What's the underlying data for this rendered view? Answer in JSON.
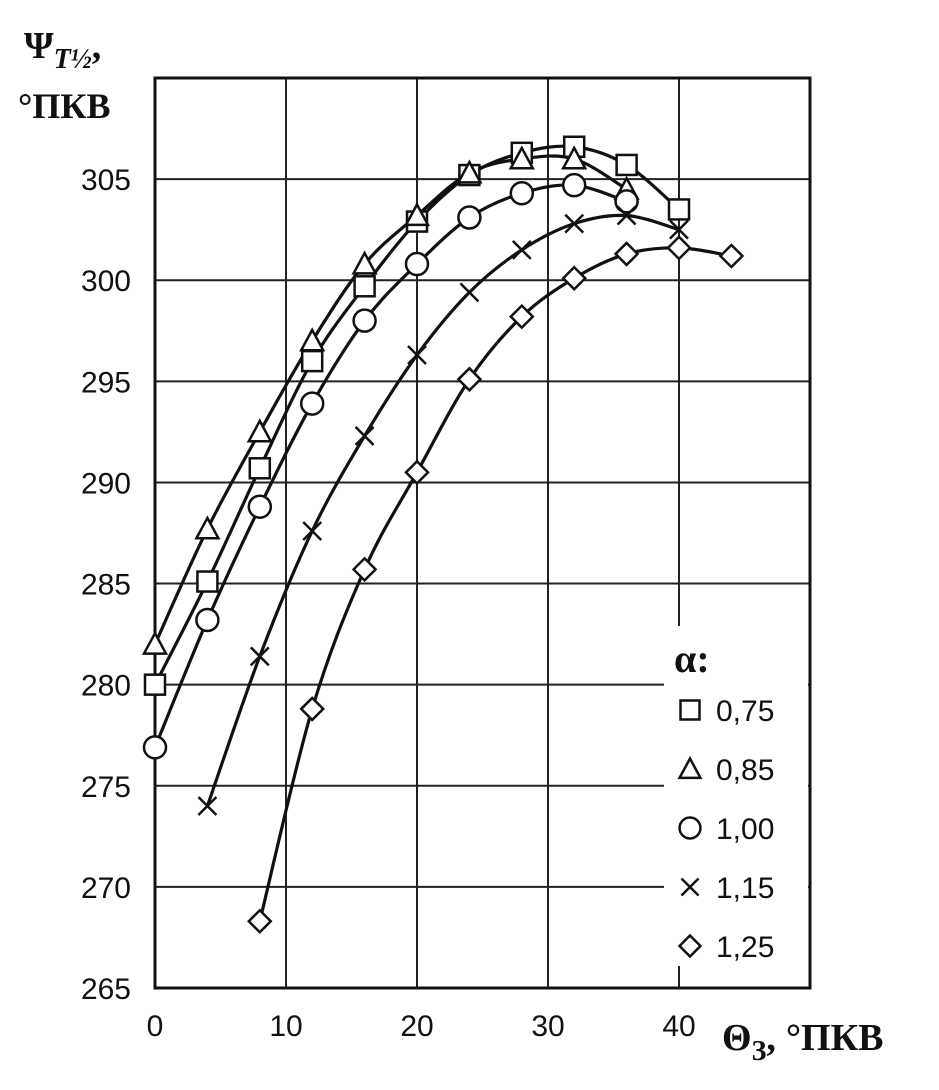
{
  "chart_data": {
    "type": "line",
    "title": "",
    "ylabel": {
      "symbol": "Ψ",
      "subscript": "T½",
      "suffix": ",",
      "unit": "°ПКВ"
    },
    "xlabel": {
      "symbol": "Θ",
      "subscript": "З",
      "suffix": ",",
      "unit": "°ПКВ"
    },
    "xlim": [
      0,
      50
    ],
    "ylim": [
      265,
      310
    ],
    "x_ticks": [
      "0",
      "10",
      "20",
      "30",
      "40"
    ],
    "y_ticks": [
      "265",
      "270",
      "275",
      "280",
      "285",
      "290",
      "295",
      "300",
      "305"
    ],
    "grid": true,
    "legend": {
      "title": "α:",
      "position": "bottom-right"
    },
    "series": [
      {
        "name": "0,75",
        "marker": "square",
        "x": [
          0,
          4,
          8,
          12,
          16,
          20,
          24,
          28,
          32,
          36,
          40
        ],
        "y": [
          280.0,
          285.1,
          290.7,
          296.0,
          299.7,
          302.9,
          305.2,
          306.3,
          306.6,
          305.7,
          303.5
        ]
      },
      {
        "name": "0,85",
        "marker": "triangle",
        "x": [
          0,
          4,
          8,
          12,
          16,
          20,
          24,
          28,
          32,
          36
        ],
        "y": [
          282.0,
          287.7,
          292.5,
          297.0,
          300.8,
          303.2,
          305.3,
          306.0,
          306.0,
          304.5
        ]
      },
      {
        "name": "1,00",
        "marker": "circle",
        "x": [
          0,
          4,
          8,
          12,
          16,
          20,
          24,
          28,
          32,
          36
        ],
        "y": [
          276.9,
          283.2,
          288.8,
          293.9,
          298.0,
          300.8,
          303.1,
          304.3,
          304.7,
          303.9
        ]
      },
      {
        "name": "1,15",
        "marker": "cross",
        "x": [
          4,
          8,
          12,
          16,
          20,
          24,
          28,
          32,
          36,
          40
        ],
        "y": [
          274.0,
          281.4,
          287.6,
          292.3,
          296.3,
          299.4,
          301.5,
          302.8,
          303.2,
          302.5
        ]
      },
      {
        "name": "1,25",
        "marker": "diamond",
        "x": [
          8,
          12,
          16,
          20,
          24,
          28,
          32,
          36,
          40,
          44
        ],
        "y": [
          268.3,
          278.8,
          285.7,
          290.5,
          295.1,
          298.2,
          300.1,
          301.3,
          301.6,
          301.2
        ]
      }
    ]
  }
}
